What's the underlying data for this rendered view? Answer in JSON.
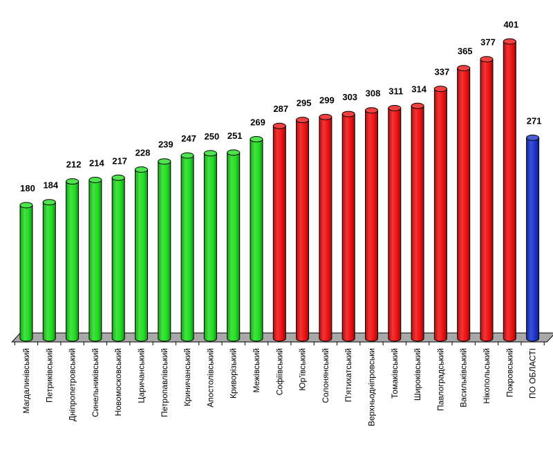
{
  "chart_data": {
    "type": "bar",
    "style": "3d-cylinder",
    "categories": [
      "Магдалинівський",
      "Петриківський",
      "Дніпропетровський",
      "Синельниківський",
      "Новомосковський",
      "Царичанський",
      "Петропавлівський",
      "Криничанський",
      "Апостолівський",
      "Криворізький",
      "Межівський",
      "Софіївський",
      "Юр'ївський",
      "Солонянський",
      "П'ятихатський",
      "Верхньодніпровськи",
      "Томаківський",
      "Широківський",
      "Павлоградський",
      "Васильківський",
      "Нікопольський",
      "Покровський",
      "ПО ОБЛАСТІ"
    ],
    "values": [
      180,
      184,
      212,
      214,
      217,
      228,
      239,
      247,
      250,
      251,
      269,
      287,
      295,
      299,
      303,
      308,
      311,
      314,
      337,
      365,
      377,
      401,
      271
    ],
    "bar_colors": [
      "#22dd22",
      "#22dd22",
      "#22dd22",
      "#22dd22",
      "#22dd22",
      "#22dd22",
      "#22dd22",
      "#22dd22",
      "#22dd22",
      "#22dd22",
      "#22dd22",
      "#ee1111",
      "#ee1111",
      "#ee1111",
      "#ee1111",
      "#ee1111",
      "#ee1111",
      "#ee1111",
      "#ee1111",
      "#ee1111",
      "#ee1111",
      "#ee1111",
      "#1a33cc"
    ],
    "ylim": [
      0,
      401
    ],
    "grid": false,
    "legend": "none",
    "floor_color": "#a8a8a8"
  }
}
